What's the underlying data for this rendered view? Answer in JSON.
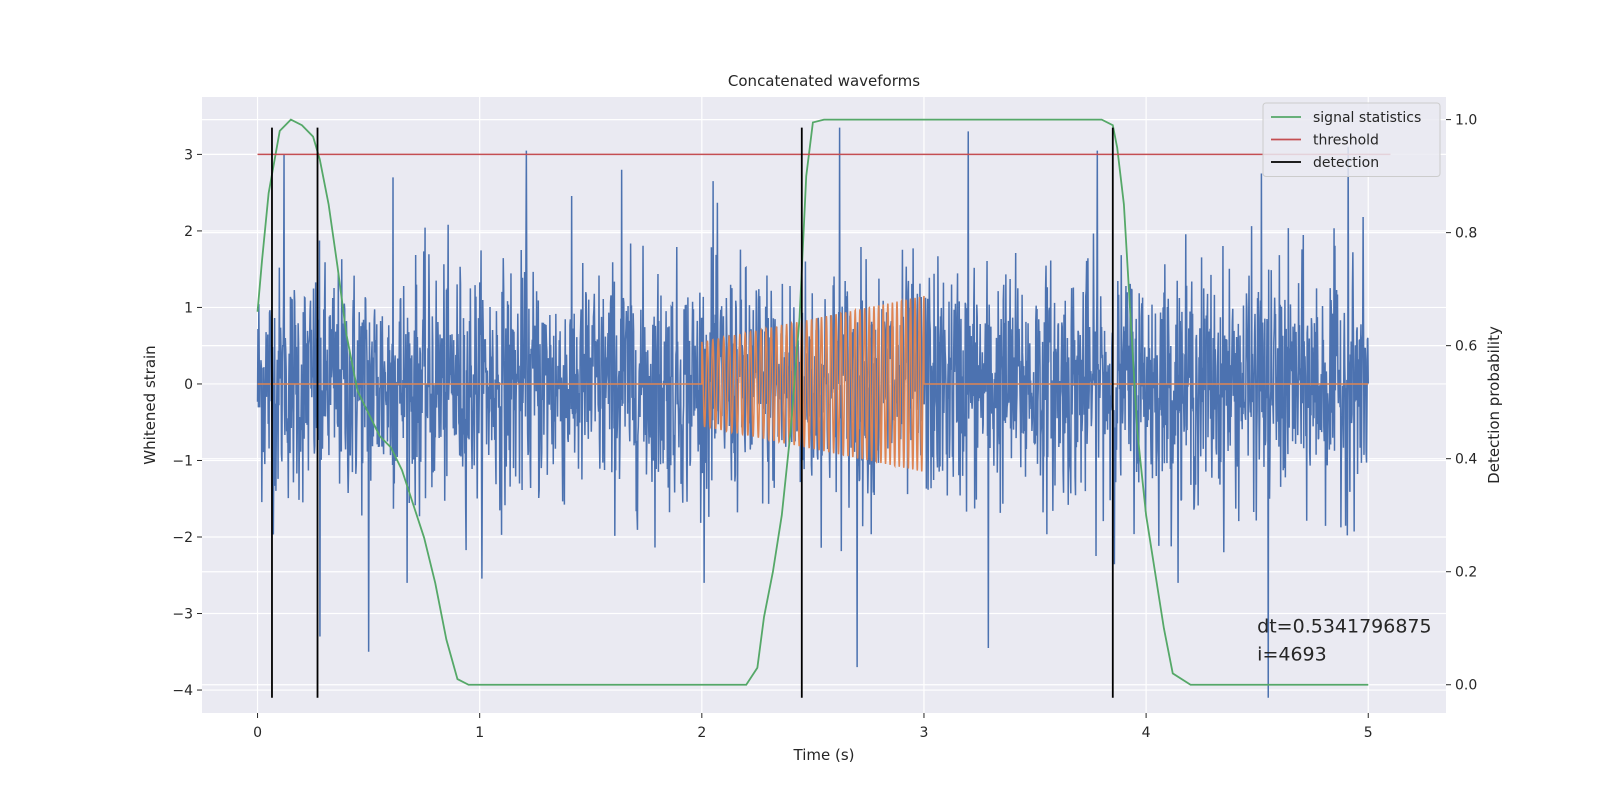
{
  "chart_data": {
    "type": "line",
    "title": "Concatenated waveforms",
    "xlabel": "Time (s)",
    "ylabel": "Whitened strain",
    "ylabel_right": "Detection probability",
    "xlim": [
      -0.25,
      5.35
    ],
    "ylim": [
      -4.3,
      3.75
    ],
    "ylim_right": [
      -0.05,
      1.04
    ],
    "xticks": [
      0,
      1,
      2,
      3,
      4,
      5
    ],
    "yticks": [
      3,
      2,
      1,
      0,
      -1,
      -2,
      -3,
      -4
    ],
    "yticks_right": [
      1.0,
      0.8,
      0.6,
      0.4,
      0.2,
      0.0
    ],
    "xtick_labels": [
      "0",
      "1",
      "2",
      "3",
      "4",
      "5"
    ],
    "ytick_labels": [
      "3",
      "2",
      "1",
      "0",
      "−1",
      "−2",
      "−3",
      "−4"
    ],
    "ytick_labels_right": [
      "1.0",
      "0.8",
      "0.6",
      "0.4",
      "0.2",
      "0.0"
    ],
    "grid": true,
    "legend_position": "top-right",
    "series": [
      {
        "key": "strain",
        "color": "#4c72b0",
        "axis": "left",
        "x_range": [
          0,
          5
        ],
        "sigma": 0.75,
        "peaks": [
          {
            "x": 0.12,
            "y": 3.0
          },
          {
            "x": 0.28,
            "y": -3.3
          },
          {
            "x": 0.5,
            "y": -3.5
          },
          {
            "x": 0.61,
            "y": 2.7
          },
          {
            "x": 1.21,
            "y": 3.05
          },
          {
            "x": 1.64,
            "y": 2.8
          },
          {
            "x": 2.05,
            "y": 2.65
          },
          {
            "x": 2.62,
            "y": 3.35
          },
          {
            "x": 2.7,
            "y": -3.7
          },
          {
            "x": 3.2,
            "y": 3.3
          },
          {
            "x": 3.29,
            "y": -3.45
          },
          {
            "x": 3.78,
            "y": 3.05
          },
          {
            "x": 4.52,
            "y": 2.75
          },
          {
            "x": 4.55,
            "y": -4.1
          },
          {
            "x": 4.91,
            "y": 3.1
          }
        ]
      },
      {
        "key": "signal",
        "color": "#dd8452",
        "axis": "left",
        "start": 2.0,
        "end": 3.0,
        "amp_start": 0.55,
        "amp_end": 1.15,
        "f_start": 40,
        "f_end": 50
      },
      {
        "name": "signal statistics",
        "color": "#55a868",
        "axis": "right",
        "x": [
          0,
          0.02,
          0.05,
          0.1,
          0.15,
          0.2,
          0.25,
          0.28,
          0.32,
          0.36,
          0.4,
          0.45,
          0.5,
          0.55,
          0.6,
          0.65,
          0.7,
          0.75,
          0.8,
          0.85,
          0.9,
          0.95,
          1.0,
          2.2,
          2.25,
          2.28,
          2.32,
          2.36,
          2.4,
          2.44,
          2.47,
          2.5,
          2.55,
          3.8,
          3.85,
          3.87,
          3.9,
          3.93,
          3.96,
          4.0,
          4.04,
          4.08,
          4.12,
          4.2,
          5.0
        ],
        "y": [
          0.66,
          0.75,
          0.87,
          0.98,
          1.0,
          0.99,
          0.97,
          0.93,
          0.85,
          0.74,
          0.62,
          0.52,
          0.48,
          0.44,
          0.42,
          0.38,
          0.32,
          0.26,
          0.18,
          0.08,
          0.01,
          0.0,
          0.0,
          0.0,
          0.03,
          0.12,
          0.2,
          0.3,
          0.45,
          0.65,
          0.9,
          0.995,
          1.0,
          1.0,
          0.99,
          0.95,
          0.85,
          0.65,
          0.45,
          0.3,
          0.2,
          0.1,
          0.02,
          0.0,
          0.0
        ]
      },
      {
        "name": "threshold",
        "color": "#c44e52",
        "axis": "left",
        "x": [
          0,
          5.1
        ],
        "y": [
          3.0,
          3.0
        ]
      },
      {
        "name": "detection",
        "color": "#000000",
        "axis": "left",
        "type": "vlines",
        "x": [
          0.065,
          0.27,
          2.45,
          3.85
        ],
        "y_range": [
          -4.1,
          3.35
        ]
      }
    ],
    "annotation": {
      "lines": [
        "dt=0.5341796875",
        " i=4693"
      ],
      "x": 4.5,
      "y": -3.25
    }
  }
}
